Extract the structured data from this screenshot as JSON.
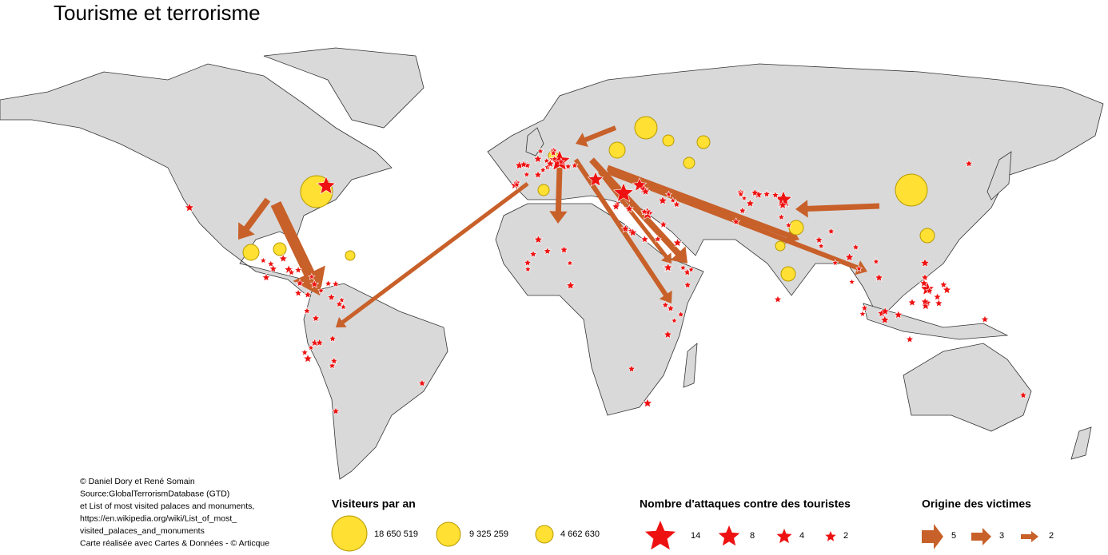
{
  "header": {
    "title": "Tourisme et terrorisme"
  },
  "credits": [
    "© Daniel Dory et René Somain",
    "Source:GlobalTerrorismDatabase (GTD)",
    "et List of most visited palaces and monuments,",
    "https://en.wikipedia.org/wiki/List_of_most_",
    "visited_palaces_and_monuments",
    "Carte réalisée avec Cartes & Données - © Articque"
  ],
  "legend": {
    "visitors": {
      "title": "Visiteurs par an",
      "items": [
        "18 650 519",
        "9 325 259",
        "4 662 630"
      ]
    },
    "attacks": {
      "title": "Nombre d'attaques contre des touristes",
      "items": [
        "14",
        "8",
        "4",
        "2"
      ]
    },
    "origin": {
      "title": "Origine des victimes",
      "items": [
        "5",
        "3",
        "2"
      ]
    }
  }
}
